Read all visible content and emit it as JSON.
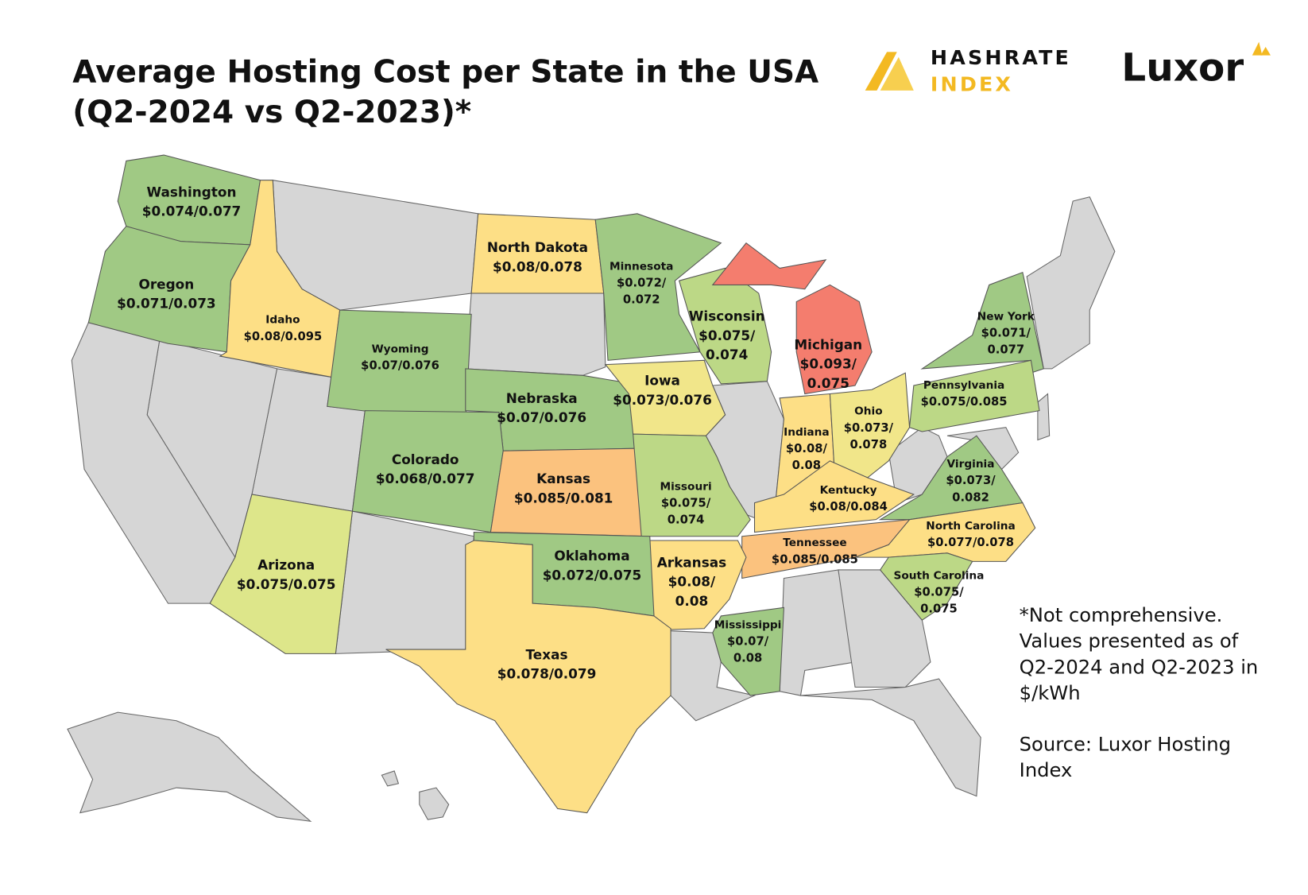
{
  "header": {
    "title_lines": [
      "Average Hosting Cost per State in the USA",
      "(Q2-2024 vs Q2-2023)*"
    ],
    "logo_hashrate": [
      "HASHRATE",
      "INDEX"
    ],
    "logo_luxor": "Luxor"
  },
  "states": [
    {
      "name": "Washington",
      "cost_lines": [
        "$0.074/0.077"
      ],
      "color": "#a0c984"
    },
    {
      "name": "Oregon",
      "cost_lines": [
        "$0.071/0.073"
      ],
      "color": "#a0c984"
    },
    {
      "name": "Idaho",
      "cost_lines": [
        "$0.08/0.095"
      ],
      "color": "#fddf86"
    },
    {
      "name": "North Dakota",
      "cost_lines": [
        "$0.08/0.078"
      ],
      "color": "#fddf86"
    },
    {
      "name": "Minnesota",
      "cost_lines": [
        "$0.072/",
        "0.072"
      ],
      "color": "#a0c984"
    },
    {
      "name": "Wisconsin",
      "cost_lines": [
        "$0.075/",
        "0.074"
      ],
      "color": "#bcd886"
    },
    {
      "name": "Michigan",
      "cost_lines": [
        "$0.093/",
        "0.075"
      ],
      "color": "#f47d6e"
    },
    {
      "name": "New York",
      "cost_lines": [
        "$0.071/",
        "0.077"
      ],
      "color": "#a0c984"
    },
    {
      "name": "Pennsylvania",
      "cost_lines": [
        "$0.075/0.085"
      ],
      "color": "#bcd886"
    },
    {
      "name": "Wyoming",
      "cost_lines": [
        "$0.07/0.076"
      ],
      "color": "#a0c984"
    },
    {
      "name": "Nebraska",
      "cost_lines": [
        "$0.07/0.076"
      ],
      "color": "#a0c984"
    },
    {
      "name": "Iowa",
      "cost_lines": [
        "$0.073/0.076"
      ],
      "color": "#f1e68a"
    },
    {
      "name": "Indiana",
      "cost_lines": [
        "$0.08/",
        "0.08"
      ],
      "color": "#fddf86"
    },
    {
      "name": "Ohio",
      "cost_lines": [
        "$0.073/",
        "0.078"
      ],
      "color": "#f1e68a"
    },
    {
      "name": "Colorado",
      "cost_lines": [
        "$0.068/0.077"
      ],
      "color": "#a0c984"
    },
    {
      "name": "Kansas",
      "cost_lines": [
        "$0.085/0.081"
      ],
      "color": "#fbc27e"
    },
    {
      "name": "Missouri",
      "cost_lines": [
        "$0.075/",
        "0.074"
      ],
      "color": "#bcd886"
    },
    {
      "name": "Kentucky",
      "cost_lines": [
        "$0.08/0.084"
      ],
      "color": "#fddf86"
    },
    {
      "name": "Virginia",
      "cost_lines": [
        "$0.073/",
        "0.082"
      ],
      "color": "#a0c984"
    },
    {
      "name": "North Carolina",
      "cost_lines": [
        "$0.077/0.078"
      ],
      "color": "#fddf86"
    },
    {
      "name": "Tennessee",
      "cost_lines": [
        "$0.085/0.085"
      ],
      "color": "#fbc27e"
    },
    {
      "name": "Arkansas",
      "cost_lines": [
        "$0.08/",
        "0.08"
      ],
      "color": "#fddf86"
    },
    {
      "name": "Oklahoma",
      "cost_lines": [
        "$0.072/0.075"
      ],
      "color": "#a0c984"
    },
    {
      "name": "South Carolina",
      "cost_lines": [
        "$0.075/",
        "0.075"
      ],
      "color": "#bcd886"
    },
    {
      "name": "Arizona",
      "cost_lines": [
        "$0.075/0.075"
      ],
      "color": "#dde68a"
    },
    {
      "name": "Mississippi",
      "cost_lines": [
        "$0.07/",
        "0.08"
      ],
      "color": "#a0c984"
    },
    {
      "name": "Texas",
      "cost_lines": [
        "$0.078/0.079"
      ],
      "color": "#fddf86"
    }
  ],
  "notes": {
    "comment_lines": [
      "*Not comprehensive.",
      "Values presented as of",
      "Q2-2024 and Q2-2023 in",
      "$/kWh"
    ],
    "source_lines": [
      "Source: Luxor Hosting",
      "Index"
    ]
  }
}
